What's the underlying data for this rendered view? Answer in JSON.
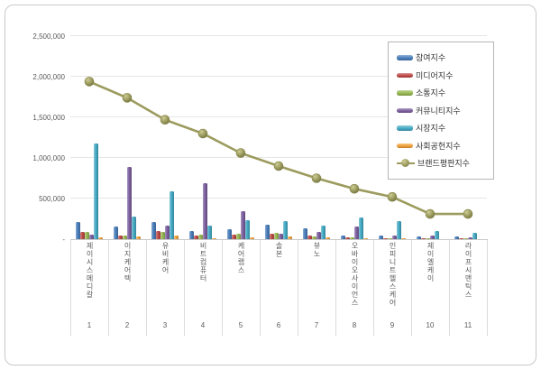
{
  "chart_data": {
    "type": "bar",
    "title": "",
    "categories": [
      "제이시스메디칼",
      "이지케어텍",
      "유비케어",
      "비트컴퓨터",
      "케어랩스",
      "솔본",
      "뷰노",
      "오바이오사이언스",
      "인피니트헬스케어",
      "제이엘케이",
      "라이프시맨틱스"
    ],
    "category_ranks": [
      "1",
      "2",
      "3",
      "4",
      "5",
      "6",
      "7",
      "8",
      "9",
      "10",
      "11"
    ],
    "series": [
      {
        "name": "참여지수",
        "color": "#4a7ebb",
        "values": [
          210000,
          160000,
          210000,
          100000,
          120000,
          175000,
          130000,
          45000,
          48000,
          30000,
          30000
        ]
      },
      {
        "name": "미디어지수",
        "color": "#bf4b48",
        "values": [
          95000,
          50000,
          100000,
          45000,
          55000,
          70000,
          40000,
          20000,
          16000,
          10000,
          10000
        ]
      },
      {
        "name": "소통지수",
        "color": "#98b954",
        "values": [
          95000,
          40000,
          95000,
          55000,
          70000,
          75000,
          30000,
          20000,
          10000,
          10000,
          10000
        ]
      },
      {
        "name": "커뮤니티지수",
        "color": "#7d60a0",
        "values": [
          60000,
          890000,
          165000,
          690000,
          340000,
          70000,
          85000,
          160000,
          41000,
          41000,
          25000
        ]
      },
      {
        "name": "시장지수",
        "color": "#45aac5",
        "values": [
          1180000,
          280000,
          590000,
          170000,
          230000,
          220000,
          170000,
          270000,
          225000,
          100000,
          80000
        ]
      },
      {
        "name": "사회공헌지수",
        "color": "#f0a13a",
        "values": [
          25000,
          30000,
          40000,
          15000,
          20000,
          30000,
          20000,
          10000,
          8000,
          5000,
          5000
        ]
      }
    ],
    "line_series": {
      "name": "브랜드평판지수",
      "color": "#9c9b5e",
      "values": [
        1940000,
        1740000,
        1470000,
        1300000,
        1060000,
        900000,
        750000,
        620000,
        520000,
        310000,
        310000
      ]
    },
    "y_axis": {
      "max": 2500000,
      "ticks": [
        {
          "value": 0,
          "label": "-"
        },
        {
          "value": 500000,
          "label": "500,000"
        },
        {
          "value": 1000000,
          "label": "1,000,000"
        },
        {
          "value": 1500000,
          "label": "1,500,000"
        },
        {
          "value": 2000000,
          "label": "2,000,000"
        },
        {
          "value": 2500000,
          "label": "2,500,000"
        }
      ]
    },
    "legend": {
      "position": "top-right"
    }
  }
}
